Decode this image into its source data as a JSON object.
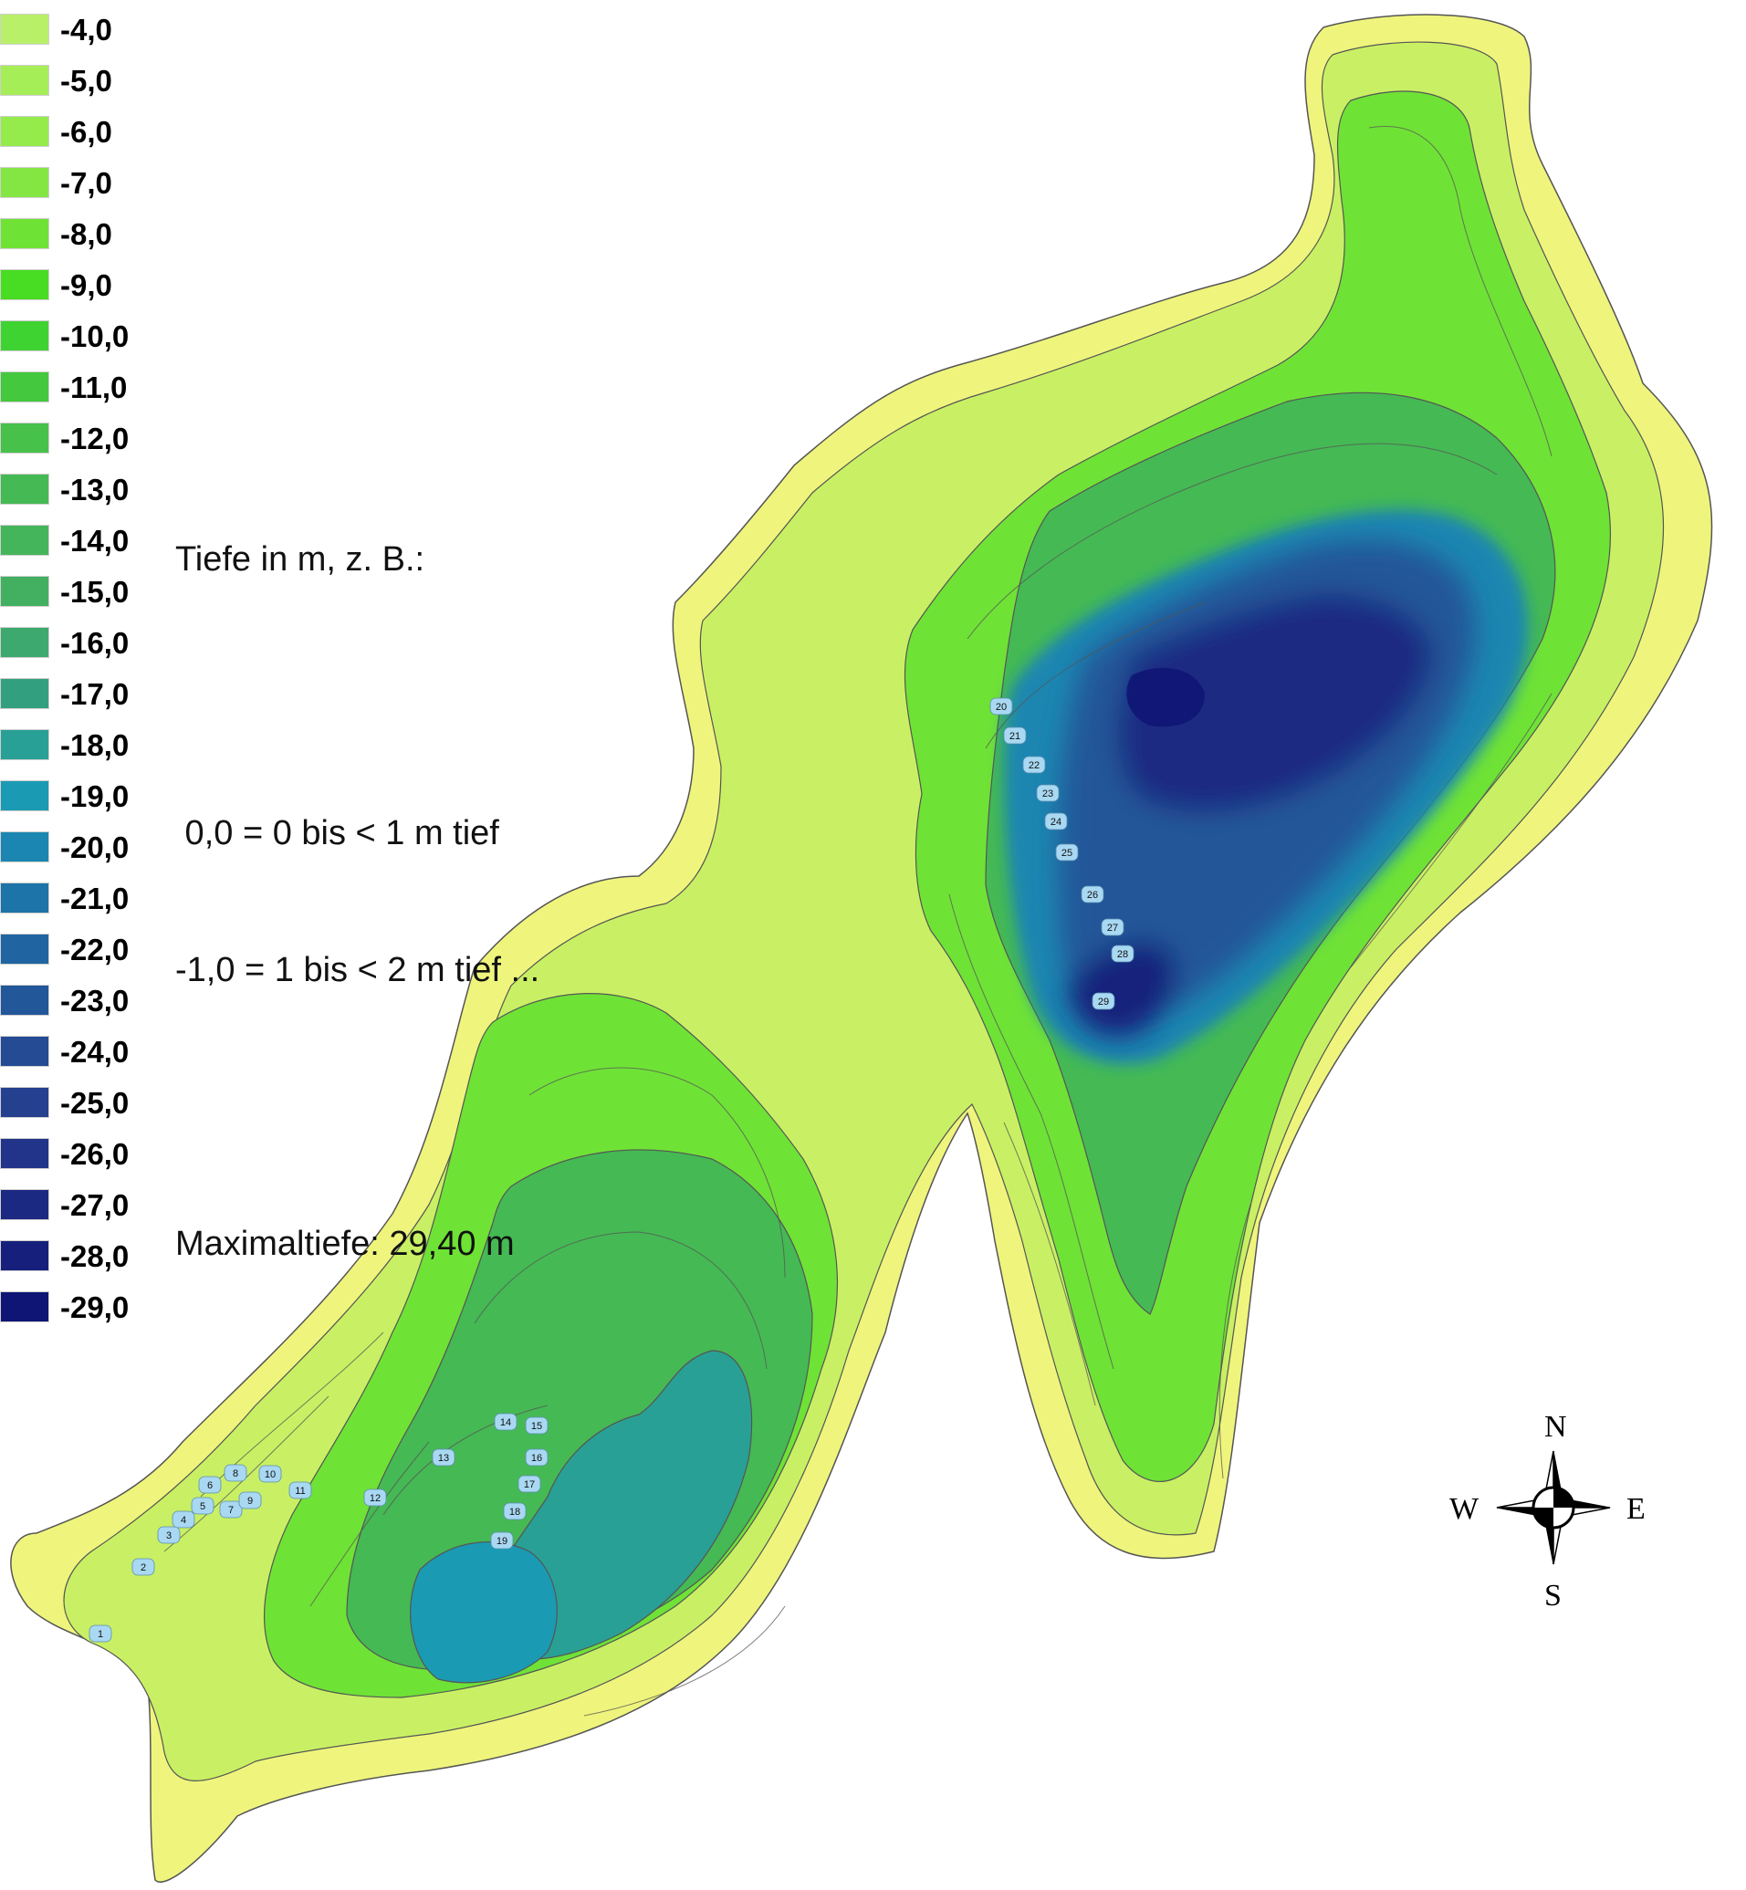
{
  "legend": [
    {
      "label": "-4,0",
      "color": "#b9f06a"
    },
    {
      "label": "-5,0",
      "color": "#a6ee58"
    },
    {
      "label": "-6,0",
      "color": "#95ea4c"
    },
    {
      "label": "-7,0",
      "color": "#84e643"
    },
    {
      "label": "-8,0",
      "color": "#6fe236"
    },
    {
      "label": "-9,0",
      "color": "#48dc22"
    },
    {
      "label": "-10,0",
      "color": "#3fd332"
    },
    {
      "label": "-11,0",
      "color": "#44c83d"
    },
    {
      "label": "-12,0",
      "color": "#47c14a"
    },
    {
      "label": "-13,0",
      "color": "#45b954"
    },
    {
      "label": "-14,0",
      "color": "#45b55c"
    },
    {
      "label": "-15,0",
      "color": "#43b061"
    },
    {
      "label": "-16,0",
      "color": "#3ea96e"
    },
    {
      "label": "-17,0",
      "color": "#32a07f"
    },
    {
      "label": "-18,0",
      "color": "#29a095"
    },
    {
      "label": "-19,0",
      "color": "#1b9ab3"
    },
    {
      "label": "-20,0",
      "color": "#1a86b1"
    },
    {
      "label": "-21,0",
      "color": "#1d74a8"
    },
    {
      "label": "-22,0",
      "color": "#2065a2"
    },
    {
      "label": "-23,0",
      "color": "#225799"
    },
    {
      "label": "-24,0",
      "color": "#244b94"
    },
    {
      "label": "-25,0",
      "color": "#24408f"
    },
    {
      "label": "-26,0",
      "color": "#213489"
    },
    {
      "label": "-27,0",
      "color": "#1c2982"
    },
    {
      "label": "-28,0",
      "color": "#16207c"
    },
    {
      "label": "-29,0",
      "color": "#0f1574"
    }
  ],
  "info": {
    "line1": "Tiefe in m, z. B.:",
    "line2": "",
    "line3": " 0,0 = 0 bis < 1 m tief",
    "line4": "-1,0 = 1 bis < 2 m tief ...",
    "line5": "",
    "line6": "Maximaltiefe: 29,40 m"
  },
  "compass": {
    "north": "N",
    "south": "S",
    "east": "E",
    "west": "W"
  },
  "colors": {
    "shore": "#eff57c",
    "shallow": "#c9f064",
    "contour": "#555555",
    "marker": "#a9d8f2",
    "deepest": "#0f1574"
  },
  "measurement_points": [
    {
      "label": "1"
    },
    {
      "label": "2"
    },
    {
      "label": "3"
    },
    {
      "label": "4"
    },
    {
      "label": "5"
    },
    {
      "label": "6"
    },
    {
      "label": "7"
    },
    {
      "label": "8"
    },
    {
      "label": "9"
    },
    {
      "label": "10"
    },
    {
      "label": "11"
    },
    {
      "label": "12"
    },
    {
      "label": "13"
    },
    {
      "label": "14"
    },
    {
      "label": "15"
    },
    {
      "label": "16"
    },
    {
      "label": "17"
    },
    {
      "label": "18"
    },
    {
      "label": "19"
    },
    {
      "label": "20"
    },
    {
      "label": "21"
    },
    {
      "label": "22"
    },
    {
      "label": "23"
    },
    {
      "label": "24"
    },
    {
      "label": "25"
    },
    {
      "label": "26"
    },
    {
      "label": "27"
    },
    {
      "label": "28"
    },
    {
      "label": "29"
    }
  ]
}
